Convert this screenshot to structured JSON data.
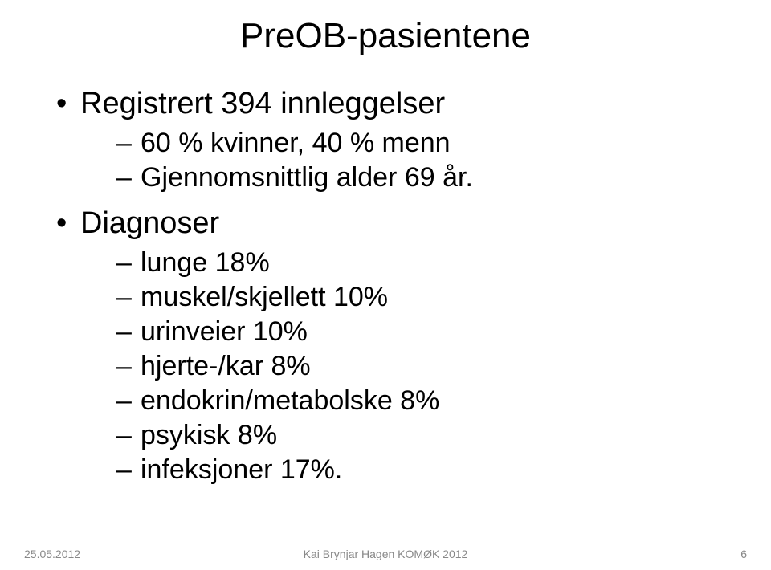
{
  "slide": {
    "title": "PreOB-pasientene",
    "bullets": [
      {
        "text": "Registrert 394 innleggelser",
        "subs": [
          "60 % kvinner, 40 % menn",
          "Gjennomsnittlig alder 69 år."
        ]
      },
      {
        "text": "Diagnoser",
        "subs": [
          "lunge 18%",
          "muskel/skjellett 10%",
          "urinveier 10%",
          "hjerte-/kar 8%",
          "endokrin/metabolske 8%",
          "psykisk 8%",
          "infeksjoner 17%."
        ]
      }
    ]
  },
  "footer": {
    "date": "25.05.2012",
    "center": "Kai Brynjar Hagen KOMØK 2012",
    "page": "6"
  },
  "styles": {
    "background_color": "#ffffff",
    "title_fontsize": 44,
    "main_bullet_fontsize": 38,
    "sub_bullet_fontsize": 34,
    "footer_fontsize": 14,
    "text_color": "#000000",
    "footer_color": "#888888"
  }
}
